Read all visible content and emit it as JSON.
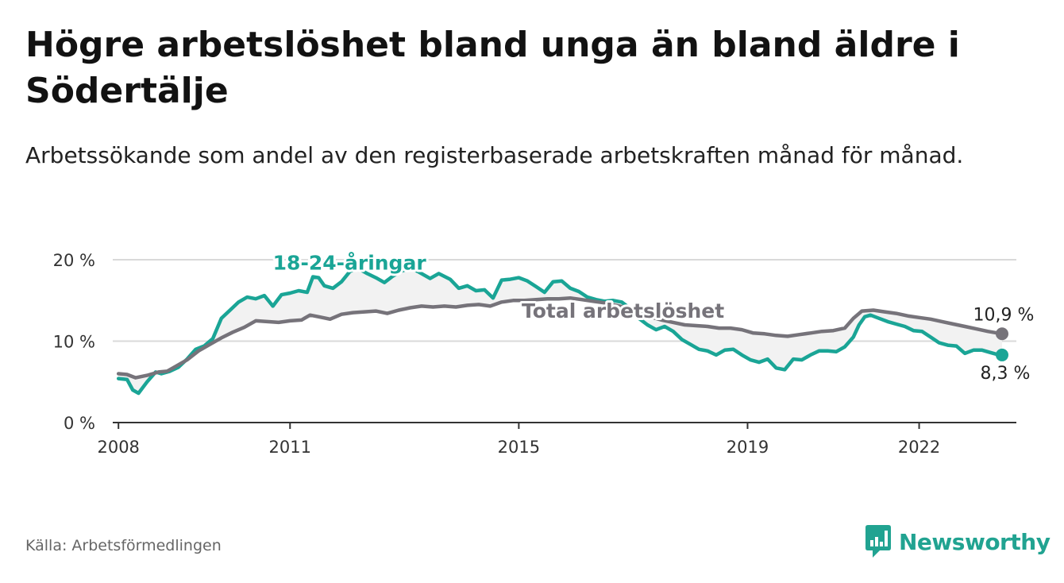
{
  "title": "Högre arbetslöshet bland unga än bland äldre i Södertälje",
  "subtitle": "Arbetssökande som andel av den registerbaserade arbetskraften månad för månad.",
  "source": "Källa: Arbetsförmedlingen",
  "brand": {
    "name": "Newsworthy",
    "icon": "bar-chart-logo-icon"
  },
  "colors": {
    "youth": "#1aa596",
    "total": "#76737a",
    "grid": "#d9d9d9",
    "brand": "#21a391"
  },
  "chart_data": {
    "type": "line",
    "title": "Högre arbetslöshet bland unga än bland äldre i Södertälje",
    "xlabel": "",
    "ylabel": "",
    "xlim": [
      2007.9,
      2023.7
    ],
    "ylim": [
      0,
      20
    ],
    "y_ticks": [
      0,
      10,
      20
    ],
    "y_tick_labels": [
      "0 %",
      "10 %",
      "20 %"
    ],
    "x_ticks": [
      2008,
      2011,
      2015,
      2019,
      2022
    ],
    "x_tick_labels": [
      "2008",
      "2011",
      "2015",
      "2019",
      "2022"
    ],
    "grid": true,
    "series": [
      {
        "name": "18-24-åringar",
        "label": "18-24-åringar",
        "end_label": "8,3 %",
        "points": [
          [
            2008.0,
            5.4
          ],
          [
            2008.15,
            5.3
          ],
          [
            2008.25,
            4.0
          ],
          [
            2008.35,
            3.6
          ],
          [
            2008.5,
            5.0
          ],
          [
            2008.65,
            6.2
          ],
          [
            2008.75,
            6.0
          ],
          [
            2008.9,
            6.3
          ],
          [
            2009.05,
            6.8
          ],
          [
            2009.2,
            7.8
          ],
          [
            2009.35,
            9.0
          ],
          [
            2009.5,
            9.4
          ],
          [
            2009.65,
            10.3
          ],
          [
            2009.8,
            12.8
          ],
          [
            2009.95,
            13.8
          ],
          [
            2010.1,
            14.8
          ],
          [
            2010.25,
            15.4
          ],
          [
            2010.4,
            15.2
          ],
          [
            2010.55,
            15.6
          ],
          [
            2010.7,
            14.3
          ],
          [
            2010.85,
            15.7
          ],
          [
            2011.0,
            15.9
          ],
          [
            2011.15,
            16.2
          ],
          [
            2011.3,
            16.0
          ],
          [
            2011.4,
            17.9
          ],
          [
            2011.5,
            17.8
          ],
          [
            2011.6,
            16.8
          ],
          [
            2011.75,
            16.5
          ],
          [
            2011.9,
            17.3
          ],
          [
            2012.05,
            18.6
          ],
          [
            2012.2,
            18.9
          ],
          [
            2012.35,
            18.3
          ],
          [
            2012.5,
            17.8
          ],
          [
            2012.65,
            17.2
          ],
          [
            2012.8,
            18.0
          ],
          [
            2012.95,
            18.6
          ],
          [
            2013.1,
            19.0
          ],
          [
            2013.25,
            18.5
          ],
          [
            2013.45,
            17.7
          ],
          [
            2013.6,
            18.3
          ],
          [
            2013.8,
            17.6
          ],
          [
            2013.95,
            16.5
          ],
          [
            2014.1,
            16.8
          ],
          [
            2014.25,
            16.2
          ],
          [
            2014.4,
            16.3
          ],
          [
            2014.55,
            15.3
          ],
          [
            2014.7,
            17.5
          ],
          [
            2014.85,
            17.6
          ],
          [
            2015.0,
            17.8
          ],
          [
            2015.15,
            17.4
          ],
          [
            2015.3,
            16.7
          ],
          [
            2015.45,
            16.0
          ],
          [
            2015.6,
            17.3
          ],
          [
            2015.75,
            17.4
          ],
          [
            2015.9,
            16.5
          ],
          [
            2016.05,
            16.1
          ],
          [
            2016.2,
            15.4
          ],
          [
            2016.35,
            15.1
          ],
          [
            2016.5,
            14.9
          ],
          [
            2016.65,
            15.0
          ],
          [
            2016.8,
            14.8
          ],
          [
            2016.95,
            14.0
          ],
          [
            2017.1,
            12.8
          ],
          [
            2017.25,
            12.0
          ],
          [
            2017.4,
            11.4
          ],
          [
            2017.55,
            11.8
          ],
          [
            2017.7,
            11.2
          ],
          [
            2017.85,
            10.2
          ],
          [
            2018.0,
            9.6
          ],
          [
            2018.15,
            9.0
          ],
          [
            2018.3,
            8.8
          ],
          [
            2018.45,
            8.3
          ],
          [
            2018.6,
            8.9
          ],
          [
            2018.75,
            9.0
          ],
          [
            2018.9,
            8.3
          ],
          [
            2019.05,
            7.7
          ],
          [
            2019.2,
            7.4
          ],
          [
            2019.35,
            7.8
          ],
          [
            2019.5,
            6.7
          ],
          [
            2019.65,
            6.5
          ],
          [
            2019.8,
            7.8
          ],
          [
            2019.95,
            7.7
          ],
          [
            2020.1,
            8.3
          ],
          [
            2020.25,
            8.8
          ],
          [
            2020.4,
            8.8
          ],
          [
            2020.55,
            8.7
          ],
          [
            2020.7,
            9.3
          ],
          [
            2020.85,
            10.5
          ],
          [
            2020.95,
            12.0
          ],
          [
            2021.05,
            13.0
          ],
          [
            2021.15,
            13.2
          ],
          [
            2021.3,
            12.8
          ],
          [
            2021.45,
            12.4
          ],
          [
            2021.6,
            12.1
          ],
          [
            2021.75,
            11.8
          ],
          [
            2021.9,
            11.3
          ],
          [
            2022.05,
            11.2
          ],
          [
            2022.2,
            10.5
          ],
          [
            2022.35,
            9.8
          ],
          [
            2022.5,
            9.5
          ],
          [
            2022.65,
            9.4
          ],
          [
            2022.8,
            8.5
          ],
          [
            2022.95,
            8.9
          ],
          [
            2023.1,
            8.9
          ],
          [
            2023.25,
            8.6
          ],
          [
            2023.35,
            8.4
          ],
          [
            2023.45,
            8.3
          ]
        ]
      },
      {
        "name": "Total arbetslöshet",
        "label": "Total arbetslöshet",
        "end_label": "10,9 %",
        "points": [
          [
            2008.0,
            6.0
          ],
          [
            2008.15,
            5.9
          ],
          [
            2008.3,
            5.5
          ],
          [
            2008.5,
            5.8
          ],
          [
            2008.7,
            6.2
          ],
          [
            2008.85,
            6.3
          ],
          [
            2009.0,
            6.9
          ],
          [
            2009.2,
            7.7
          ],
          [
            2009.4,
            8.8
          ],
          [
            2009.6,
            9.6
          ],
          [
            2009.8,
            10.4
          ],
          [
            2010.0,
            11.1
          ],
          [
            2010.2,
            11.7
          ],
          [
            2010.4,
            12.5
          ],
          [
            2010.6,
            12.4
          ],
          [
            2010.8,
            12.3
          ],
          [
            2011.0,
            12.5
          ],
          [
            2011.2,
            12.6
          ],
          [
            2011.35,
            13.2
          ],
          [
            2011.5,
            13.0
          ],
          [
            2011.7,
            12.7
          ],
          [
            2011.9,
            13.3
          ],
          [
            2012.1,
            13.5
          ],
          [
            2012.3,
            13.6
          ],
          [
            2012.5,
            13.7
          ],
          [
            2012.7,
            13.4
          ],
          [
            2012.9,
            13.8
          ],
          [
            2013.1,
            14.1
          ],
          [
            2013.3,
            14.3
          ],
          [
            2013.5,
            14.2
          ],
          [
            2013.7,
            14.3
          ],
          [
            2013.9,
            14.2
          ],
          [
            2014.1,
            14.4
          ],
          [
            2014.3,
            14.5
          ],
          [
            2014.5,
            14.3
          ],
          [
            2014.7,
            14.8
          ],
          [
            2014.9,
            15.0
          ],
          [
            2015.1,
            15.0
          ],
          [
            2015.3,
            15.1
          ],
          [
            2015.5,
            15.2
          ],
          [
            2015.7,
            15.2
          ],
          [
            2015.9,
            15.3
          ],
          [
            2016.1,
            15.1
          ],
          [
            2016.3,
            14.9
          ],
          [
            2016.5,
            14.7
          ],
          [
            2016.7,
            14.4
          ],
          [
            2016.9,
            14.1
          ],
          [
            2017.1,
            13.4
          ],
          [
            2017.3,
            13.0
          ],
          [
            2017.5,
            12.6
          ],
          [
            2017.7,
            12.3
          ],
          [
            2017.9,
            12.0
          ],
          [
            2018.1,
            11.9
          ],
          [
            2018.3,
            11.8
          ],
          [
            2018.5,
            11.6
          ],
          [
            2018.7,
            11.6
          ],
          [
            2018.9,
            11.4
          ],
          [
            2019.1,
            11.0
          ],
          [
            2019.3,
            10.9
          ],
          [
            2019.5,
            10.7
          ],
          [
            2019.7,
            10.6
          ],
          [
            2019.9,
            10.8
          ],
          [
            2020.1,
            11.0
          ],
          [
            2020.3,
            11.2
          ],
          [
            2020.5,
            11.3
          ],
          [
            2020.7,
            11.6
          ],
          [
            2020.85,
            12.8
          ],
          [
            2021.0,
            13.7
          ],
          [
            2021.2,
            13.8
          ],
          [
            2021.4,
            13.6
          ],
          [
            2021.6,
            13.4
          ],
          [
            2021.8,
            13.1
          ],
          [
            2022.0,
            12.9
          ],
          [
            2022.2,
            12.7
          ],
          [
            2022.4,
            12.4
          ],
          [
            2022.6,
            12.1
          ],
          [
            2022.8,
            11.8
          ],
          [
            2023.0,
            11.5
          ],
          [
            2023.2,
            11.2
          ],
          [
            2023.45,
            10.9
          ]
        ]
      }
    ]
  }
}
